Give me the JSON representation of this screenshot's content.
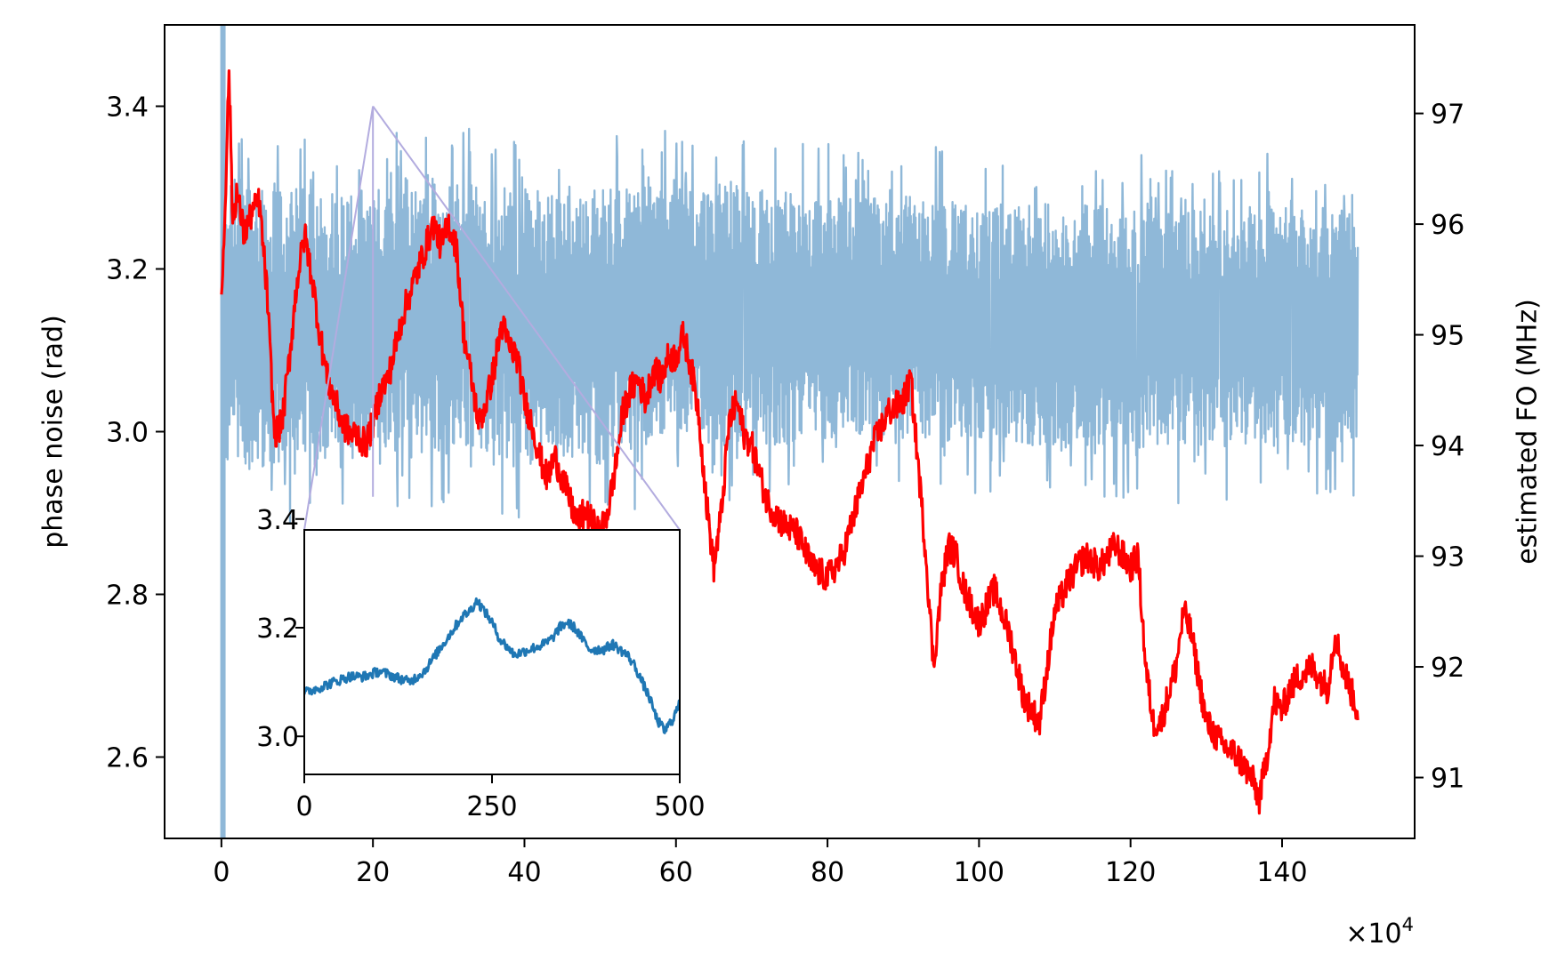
{
  "chart_data": {
    "type": "line",
    "xlabel": "",
    "x_multiplier_label": "×10",
    "x_multiplier_exponent": "4",
    "xlim": [
      -7.5,
      157.5
    ],
    "x_ticks": [
      0,
      20,
      40,
      60,
      80,
      100,
      120,
      140
    ],
    "left_axis": {
      "label": "phase noise (rad)",
      "ylim": [
        2.5,
        3.5
      ],
      "ticks": [
        "2.6",
        "2.8",
        "3.0",
        "3.2",
        "3.4"
      ]
    },
    "right_axis": {
      "label": "estimated FO (MHz)",
      "ylim": [
        90.45,
        97.8
      ],
      "ticks": [
        "91",
        "92",
        "93",
        "94",
        "95",
        "96",
        "97"
      ]
    },
    "series": [
      {
        "axis": "left",
        "color": "#8fb8d8",
        "style": "noisy band",
        "x": [
          0,
          10,
          20,
          30,
          40,
          50,
          60,
          70,
          80,
          90,
          100,
          110,
          120,
          130,
          140,
          150
        ],
        "center": [
          3.13,
          3.13,
          3.13,
          3.14,
          3.13,
          3.13,
          3.15,
          3.14,
          3.14,
          3.14,
          3.13,
          3.13,
          3.13,
          3.12,
          3.13,
          3.13
        ],
        "band_low": [
          2.95,
          2.96,
          2.97,
          2.97,
          2.96,
          2.96,
          2.99,
          2.98,
          2.99,
          2.99,
          2.99,
          2.98,
          2.98,
          2.98,
          2.98,
          2.99
        ],
        "band_high": [
          3.32,
          3.3,
          3.3,
          3.31,
          3.3,
          3.3,
          3.31,
          3.3,
          3.29,
          3.29,
          3.28,
          3.28,
          3.28,
          3.27,
          3.28,
          3.27
        ],
        "startup_spike": {
          "x": 0.2,
          "low": 2.5,
          "high": 3.5
        }
      },
      {
        "axis": "right",
        "color": "#ff0000",
        "x": [
          0,
          0.5,
          1,
          1.5,
          2,
          3,
          4,
          5,
          6,
          7,
          8,
          9,
          10,
          11,
          12,
          13,
          14,
          15,
          16,
          17,
          18,
          19,
          20,
          21,
          22,
          24,
          26,
          28,
          29,
          30,
          31,
          32,
          33,
          34,
          35,
          36,
          37,
          38,
          39,
          40,
          41,
          42,
          43,
          44,
          45,
          46,
          47,
          48,
          49,
          50,
          51,
          52,
          53,
          54,
          55,
          56,
          57,
          58,
          59,
          60,
          61,
          62,
          63,
          64,
          65,
          66,
          67,
          68,
          69,
          70,
          72,
          74,
          76,
          78,
          80,
          82,
          84,
          86,
          88,
          90,
          91,
          92,
          93,
          94,
          95,
          96,
          97,
          98,
          100,
          102,
          104,
          106,
          108,
          110,
          112,
          114,
          116,
          118,
          120,
          121,
          122,
          123,
          124,
          126,
          127,
          128,
          130,
          132,
          134,
          136,
          137,
          138,
          139,
          140,
          141,
          142,
          144,
          146,
          147,
          148,
          149,
          150
        ],
        "values": [
          95.3,
          96.2,
          97.4,
          96.0,
          96.3,
          95.9,
          96.1,
          96.2,
          95.4,
          94.1,
          94.2,
          94.8,
          95.5,
          95.9,
          95.5,
          95.0,
          94.6,
          94.4,
          94.2,
          94.1,
          94.1,
          94.0,
          94.2,
          94.5,
          94.6,
          95.2,
          95.6,
          96.0,
          95.8,
          96.0,
          95.8,
          95.0,
          94.6,
          94.2,
          94.4,
          94.7,
          95.1,
          94.9,
          94.8,
          94.4,
          94.2,
          93.9,
          93.7,
          93.9,
          93.7,
          93.5,
          93.3,
          93.4,
          93.3,
          93.2,
          93.4,
          93.8,
          94.3,
          94.5,
          94.6,
          94.4,
          94.7,
          94.6,
          94.8,
          94.8,
          95.0,
          94.7,
          94.3,
          93.5,
          92.9,
          93.4,
          94.2,
          94.4,
          94.1,
          94.0,
          93.5,
          93.3,
          93.2,
          92.9,
          92.8,
          93.0,
          93.5,
          94.0,
          94.3,
          94.4,
          94.6,
          93.8,
          93.0,
          92.0,
          92.7,
          93.1,
          93.0,
          92.7,
          92.4,
          92.7,
          92.3,
          91.7,
          91.5,
          92.5,
          92.8,
          93.0,
          92.9,
          93.1,
          92.9,
          93.0,
          92.0,
          91.5,
          91.5,
          92.0,
          92.5,
          92.3,
          91.5,
          91.3,
          91.2,
          91.0,
          90.8,
          91.2,
          91.7,
          91.6,
          91.8,
          91.9,
          92.0,
          91.8,
          92.3,
          92.0,
          91.8,
          91.6
        ]
      }
    ],
    "inset": {
      "xlim": [
        0,
        500
      ],
      "ylim": [
        2.93,
        3.38
      ],
      "x_ticks": [
        0,
        250,
        500
      ],
      "y_ticks": [
        "3.0",
        "3.2",
        "3.4"
      ],
      "zoom_from_x": 20,
      "zoom_apex_y": 3.4,
      "zoom_color": "#b3acdf",
      "series": {
        "color": "#1f77b4",
        "x": [
          0,
          20,
          40,
          60,
          80,
          100,
          120,
          140,
          160,
          180,
          200,
          210,
          220,
          230,
          240,
          250,
          260,
          280,
          300,
          320,
          330,
          340,
          350,
          360,
          380,
          400,
          410,
          420,
          430,
          440,
          450,
          460,
          470,
          480,
          490,
          500
        ],
        "values": [
          3.08,
          3.09,
          3.1,
          3.11,
          3.11,
          3.12,
          3.11,
          3.1,
          3.12,
          3.16,
          3.2,
          3.22,
          3.23,
          3.25,
          3.23,
          3.21,
          3.18,
          3.15,
          3.16,
          3.17,
          3.18,
          3.2,
          3.21,
          3.2,
          3.16,
          3.16,
          3.17,
          3.16,
          3.15,
          3.13,
          3.1,
          3.07,
          3.03,
          3.01,
          3.03,
          3.06
        ]
      }
    }
  }
}
